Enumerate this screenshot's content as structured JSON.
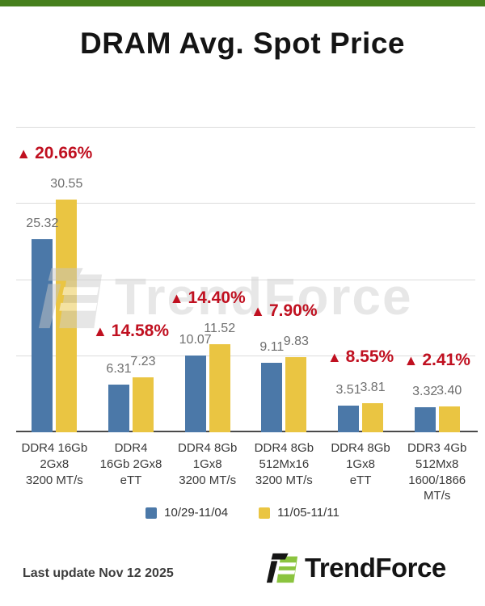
{
  "title": "DRAM Avg. Spot Price",
  "chart_data": {
    "type": "bar",
    "title": "DRAM Avg. Spot Price",
    "categories": [
      [
        "DDR4 16Gb",
        "2Gx8",
        "3200 MT/s"
      ],
      [
        "DDR4",
        "16Gb 2Gx8",
        "eTT"
      ],
      [
        "DDR4 8Gb",
        "1Gx8",
        "3200 MT/s"
      ],
      [
        "DDR4 8Gb",
        "512Mx16",
        "3200 MT/s"
      ],
      [
        "DDR4 8Gb",
        "1Gx8",
        "eTT"
      ],
      [
        "DDR3 4Gb",
        "512Mx8",
        "1600/1866",
        "MT/s"
      ]
    ],
    "series": [
      {
        "name": "10/29-11/04",
        "color": "#4b78a8",
        "values": [
          25.32,
          6.31,
          10.07,
          9.11,
          3.51,
          3.32
        ]
      },
      {
        "name": "11/05-11/11",
        "color": "#eac542",
        "values": [
          30.55,
          7.23,
          11.52,
          9.83,
          3.81,
          3.4
        ]
      }
    ],
    "changes": [
      "20.66%",
      "14.58%",
      "14.40%",
      "7.90%",
      "8.55%",
      "2.41%"
    ],
    "xlabel": "",
    "ylabel": "",
    "ylim": [
      0,
      40
    ],
    "grid_values": [
      10,
      20,
      30,
      40
    ],
    "grid": true,
    "legend_position": "bottom"
  },
  "icons": {
    "up_triangle": "▲"
  },
  "watermark": {
    "text": "TrendForce"
  },
  "footer": {
    "last_update": "Last update Nov 12  2025",
    "brand": "TrendForce"
  },
  "colors": {
    "accent_green": "#47801e",
    "bar_blue": "#4b78a8",
    "bar_yellow": "#eac542",
    "change_red": "#c01020",
    "logo_green": "#8bc43f"
  }
}
